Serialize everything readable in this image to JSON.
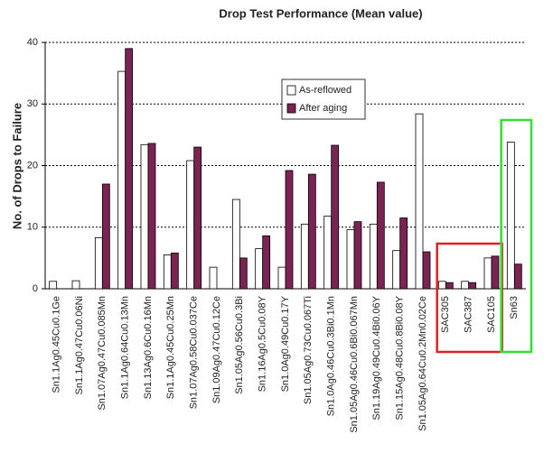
{
  "chart_data": {
    "type": "bar",
    "title": "Drop Test Performance (Mean value)",
    "y_label": "No. of Drops to Failure",
    "categories": [
      "Sn1.1Ag0.45Cu0.1Ge",
      "Sn1.1Ag0.47Cu0.06Ni",
      "Sn1.07Ag0.47Cu0.085Mn",
      "Sn1.1Ag0.64Cu0.13Mn",
      "Sn1.13Ag0.6Cu0.16Mn",
      "Sn1.1Ag0.45Cu0.25Mn",
      "Sn1.07Ag0.58Cu0.037Ce",
      "Sn1.09Ag0.47Cu0.12Ce",
      "Sn1.05Ag0.56Cu0.3Bi",
      "Sn1.16Ag0.5Cu0.08Y",
      "Sn1.0Ag0.49Cu0.17Y",
      "Sn1.05Ag0.73Cu0.067Ti",
      "Sn1.0Ag0.46Cu0.3Bi0.1Mn",
      "Sn1.05Ag0.46Cu0.6Bi0.067Mn",
      "Sn1.19Ag0.49Cu0.4Bi0.06Y",
      "Sn1.15Ag0.48Cu0.8Bi0.08Y",
      "Sn1.05Ag0.64Cu0.2Mn0.02Ce",
      "SAC305",
      "SAC387",
      "SAC105",
      "Sn63"
    ],
    "series": [
      {
        "name": "As-reflowed",
        "color": "#ffffff",
        "values": [
          1.2,
          1.3,
          8.3,
          35.3,
          23.4,
          5.5,
          20.8,
          3.5,
          14.5,
          6.5,
          3.5,
          10.5,
          11.8,
          9.6,
          10.5,
          6.2,
          28.4,
          1.2,
          1.2,
          5.0,
          23.8
        ]
      },
      {
        "name": "After aging",
        "color": "#7b2352",
        "values": [
          null,
          null,
          17,
          39,
          23.6,
          5.8,
          23,
          null,
          5,
          8.6,
          19.2,
          18.6,
          23.3,
          10.9,
          17.3,
          11.5,
          6,
          1.0,
          1.0,
          5.3,
          4
        ]
      }
    ],
    "ylim": [
      0,
      40
    ],
    "yticks": [
      0,
      10,
      20,
      30,
      40
    ],
    "grid": true
  }
}
